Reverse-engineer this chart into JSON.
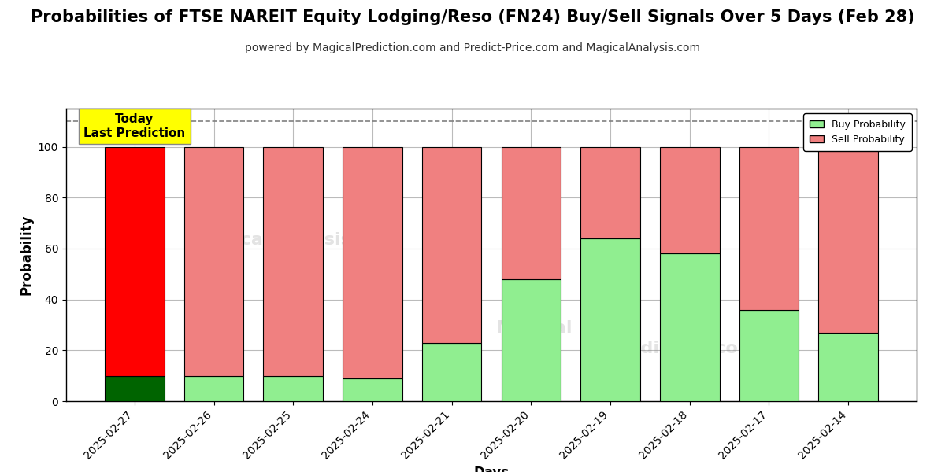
{
  "title": "Probabilities of FTSE NAREIT Equity Lodging/Reso (FN24) Buy/Sell Signals Over 5 Days (Feb 28)",
  "subtitle": "powered by MagicalPrediction.com and Predict-Price.com and MagicalAnalysis.com",
  "xlabel": "Days",
  "ylabel": "Probability",
  "categories": [
    "2025-02-27",
    "2025-02-26",
    "2025-02-25",
    "2025-02-24",
    "2025-02-21",
    "2025-02-20",
    "2025-02-19",
    "2025-02-18",
    "2025-02-17",
    "2025-02-14"
  ],
  "buy_values": [
    10,
    10,
    10,
    9,
    23,
    48,
    64,
    58,
    36,
    27
  ],
  "sell_values": [
    90,
    90,
    90,
    91,
    77,
    52,
    36,
    42,
    64,
    73
  ],
  "buy_color_first": "#006400",
  "buy_color_rest": "#90EE90",
  "sell_color_first": "#FF0000",
  "sell_color_rest": "#F08080",
  "today_box_color": "#FFFF00",
  "today_box_text": "Today\nLast Prediction",
  "dashed_line_y": 110,
  "ylim": [
    0,
    115
  ],
  "yticks": [
    0,
    20,
    40,
    60,
    80,
    100
  ],
  "legend_buy_label": "Buy Probability",
  "legend_sell_label": "Sell Probability",
  "title_fontsize": 15,
  "subtitle_fontsize": 10,
  "label_fontsize": 12,
  "tick_fontsize": 10,
  "background_color": "#ffffff",
  "grid_color": "#bbbbbb",
  "bar_width": 0.75
}
